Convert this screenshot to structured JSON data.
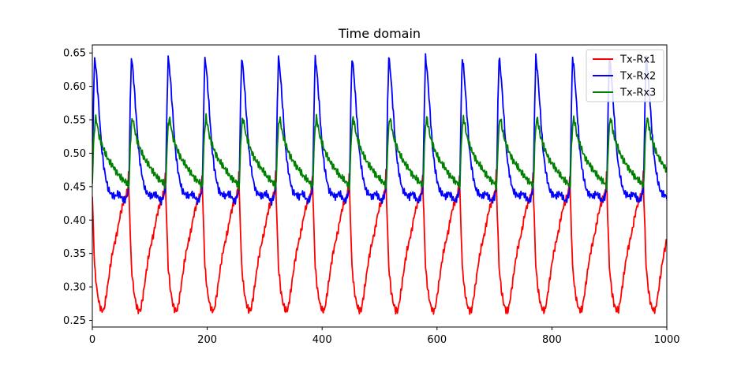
{
  "chart_data": {
    "type": "line",
    "title": "Time domain",
    "xlabel": "",
    "ylabel": "",
    "xlim": [
      0,
      1000
    ],
    "ylim": [
      0.24,
      0.662
    ],
    "xticks": [
      0,
      200,
      400,
      600,
      800,
      1000
    ],
    "xtick_labels": [
      "0",
      "200",
      "400",
      "600",
      "800",
      "1000"
    ],
    "yticks": [
      0.25,
      0.3,
      0.35,
      0.4,
      0.45,
      0.5,
      0.55,
      0.6,
      0.65
    ],
    "ytick_labels": [
      "0.25",
      "0.30",
      "0.35",
      "0.40",
      "0.45",
      "0.50",
      "0.55",
      "0.60",
      "0.65"
    ],
    "grid": false,
    "legend": "top-right",
    "period": 64,
    "series": [
      {
        "name": "Tx-Rx1",
        "color": "#ff0000",
        "shape": [
          [
            0,
            0.435
          ],
          [
            4,
            0.33
          ],
          [
            8,
            0.295
          ],
          [
            12,
            0.275
          ],
          [
            16,
            0.265
          ],
          [
            20,
            0.265
          ],
          [
            24,
            0.285
          ],
          [
            28,
            0.31
          ],
          [
            32,
            0.335
          ],
          [
            36,
            0.355
          ],
          [
            40,
            0.37
          ],
          [
            44,
            0.385
          ],
          [
            48,
            0.405
          ],
          [
            52,
            0.42
          ],
          [
            56,
            0.43
          ],
          [
            60,
            0.44
          ],
          [
            62,
            0.45
          ],
          [
            64,
            0.49
          ]
        ]
      },
      {
        "name": "Tx-Rx2",
        "color": "#0000ff",
        "shape": [
          [
            0,
            0.47
          ],
          [
            2,
            0.575
          ],
          [
            4,
            0.643
          ],
          [
            6,
            0.63
          ],
          [
            8,
            0.61
          ],
          [
            10,
            0.585
          ],
          [
            12,
            0.56
          ],
          [
            14,
            0.535
          ],
          [
            16,
            0.51
          ],
          [
            18,
            0.495
          ],
          [
            20,
            0.48
          ],
          [
            24,
            0.46
          ],
          [
            28,
            0.445
          ],
          [
            32,
            0.44
          ],
          [
            36,
            0.437
          ],
          [
            40,
            0.435
          ],
          [
            44,
            0.44
          ],
          [
            48,
            0.438
          ],
          [
            52,
            0.432
          ],
          [
            56,
            0.428
          ],
          [
            60,
            0.435
          ],
          [
            63,
            0.445
          ]
        ]
      },
      {
        "name": "Tx-Rx3",
        "color": "#008000",
        "shape": [
          [
            0,
            0.455
          ],
          [
            2,
            0.51
          ],
          [
            4,
            0.54
          ],
          [
            6,
            0.553
          ],
          [
            8,
            0.545
          ],
          [
            12,
            0.525
          ],
          [
            16,
            0.515
          ],
          [
            20,
            0.505
          ],
          [
            24,
            0.497
          ],
          [
            28,
            0.49
          ],
          [
            32,
            0.485
          ],
          [
            36,
            0.48
          ],
          [
            40,
            0.475
          ],
          [
            44,
            0.47
          ],
          [
            48,
            0.465
          ],
          [
            52,
            0.462
          ],
          [
            56,
            0.458
          ],
          [
            60,
            0.455
          ],
          [
            63,
            0.45
          ]
        ]
      }
    ]
  }
}
